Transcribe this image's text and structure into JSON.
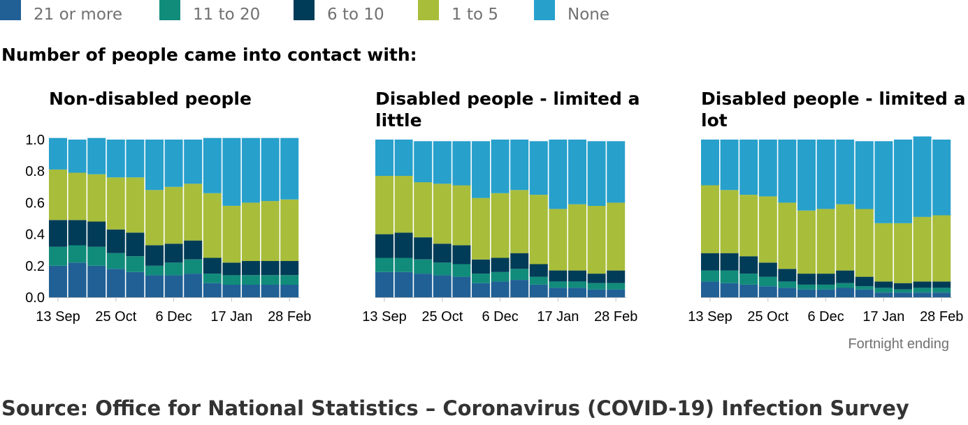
{
  "legend": [
    {
      "label": "21 or more",
      "color": "#206095"
    },
    {
      "label": "11 to 20",
      "color": "#118c7b"
    },
    {
      "label": "6 to 10",
      "color": "#003c57"
    },
    {
      "label": "1 to 5",
      "color": "#a8bd3a"
    },
    {
      "label": "None",
      "color": "#27a0cc"
    }
  ],
  "chart_data": {
    "type": "bar",
    "stacked": true,
    "title": "Number of people came into contact with:",
    "xlabel": "Fortnight ending",
    "ylabel": "",
    "ylim": [
      0,
      1.0
    ],
    "yticks": [
      "0.0",
      "0.2",
      "0.4",
      "0.6",
      "0.8",
      "1.0"
    ],
    "xticks": [
      "13 Sep",
      "25 Oct",
      "6 Dec",
      "17 Jan",
      "28 Feb"
    ],
    "xtick_positions": [
      0,
      3,
      6,
      9,
      12
    ],
    "grid": false,
    "legend_position": "top-left",
    "series_names": [
      "21 or more",
      "11 to 20",
      "6 to 10",
      "1 to 5",
      "None"
    ],
    "panels": [
      {
        "title": "Non-disabled people",
        "series": [
          {
            "name": "21 or more",
            "values": [
              0.2,
              0.22,
              0.2,
              0.18,
              0.16,
              0.14,
              0.14,
              0.15,
              0.09,
              0.08,
              0.08,
              0.08,
              0.08
            ]
          },
          {
            "name": "11 to 20",
            "values": [
              0.12,
              0.11,
              0.12,
              0.1,
              0.1,
              0.06,
              0.08,
              0.09,
              0.06,
              0.06,
              0.06,
              0.06,
              0.06
            ]
          },
          {
            "name": "6 to 10",
            "values": [
              0.17,
              0.16,
              0.16,
              0.15,
              0.15,
              0.13,
              0.12,
              0.12,
              0.1,
              0.08,
              0.09,
              0.09,
              0.09
            ]
          },
          {
            "name": "1 to 5",
            "values": [
              0.32,
              0.3,
              0.3,
              0.33,
              0.35,
              0.35,
              0.36,
              0.36,
              0.41,
              0.36,
              0.37,
              0.38,
              0.39
            ]
          },
          {
            "name": "None",
            "values": [
              0.2,
              0.21,
              0.23,
              0.24,
              0.24,
              0.32,
              0.3,
              0.28,
              0.35,
              0.43,
              0.41,
              0.4,
              0.39
            ]
          }
        ]
      },
      {
        "title": "Disabled people - limited a little",
        "series": [
          {
            "name": "21 or more",
            "values": [
              0.16,
              0.16,
              0.15,
              0.14,
              0.13,
              0.09,
              0.1,
              0.11,
              0.08,
              0.06,
              0.06,
              0.05,
              0.05
            ]
          },
          {
            "name": "11 to 20",
            "values": [
              0.09,
              0.09,
              0.09,
              0.08,
              0.08,
              0.06,
              0.06,
              0.07,
              0.05,
              0.04,
              0.04,
              0.04,
              0.04
            ]
          },
          {
            "name": "6 to 10",
            "values": [
              0.15,
              0.16,
              0.14,
              0.12,
              0.12,
              0.09,
              0.09,
              0.1,
              0.08,
              0.07,
              0.07,
              0.06,
              0.08
            ]
          },
          {
            "name": "1 to 5",
            "values": [
              0.37,
              0.36,
              0.35,
              0.38,
              0.38,
              0.39,
              0.41,
              0.4,
              0.44,
              0.39,
              0.42,
              0.43,
              0.43
            ]
          },
          {
            "name": "None",
            "values": [
              0.23,
              0.23,
              0.26,
              0.27,
              0.28,
              0.36,
              0.34,
              0.32,
              0.34,
              0.44,
              0.41,
              0.41,
              0.39
            ]
          }
        ]
      },
      {
        "title": "Disabled people - limited a lot",
        "series": [
          {
            "name": "21 or more",
            "values": [
              0.1,
              0.09,
              0.08,
              0.07,
              0.06,
              0.05,
              0.05,
              0.06,
              0.05,
              0.03,
              0.03,
              0.03,
              0.03
            ]
          },
          {
            "name": "11 to 20",
            "values": [
              0.07,
              0.08,
              0.07,
              0.06,
              0.04,
              0.03,
              0.03,
              0.03,
              0.02,
              0.03,
              0.02,
              0.03,
              0.03
            ]
          },
          {
            "name": "6 to 10",
            "values": [
              0.11,
              0.11,
              0.11,
              0.09,
              0.08,
              0.07,
              0.07,
              0.08,
              0.06,
              0.04,
              0.04,
              0.04,
              0.04
            ]
          },
          {
            "name": "1 to 5",
            "values": [
              0.43,
              0.4,
              0.39,
              0.42,
              0.42,
              0.4,
              0.41,
              0.42,
              0.43,
              0.37,
              0.38,
              0.41,
              0.42
            ]
          },
          {
            "name": "None",
            "values": [
              0.29,
              0.32,
              0.35,
              0.36,
              0.4,
              0.45,
              0.44,
              0.41,
              0.43,
              0.52,
              0.53,
              0.51,
              0.48
            ]
          }
        ]
      }
    ]
  },
  "source": "Source: Office for National Statistics – Coronavirus (COVID-19) Infection Survey"
}
